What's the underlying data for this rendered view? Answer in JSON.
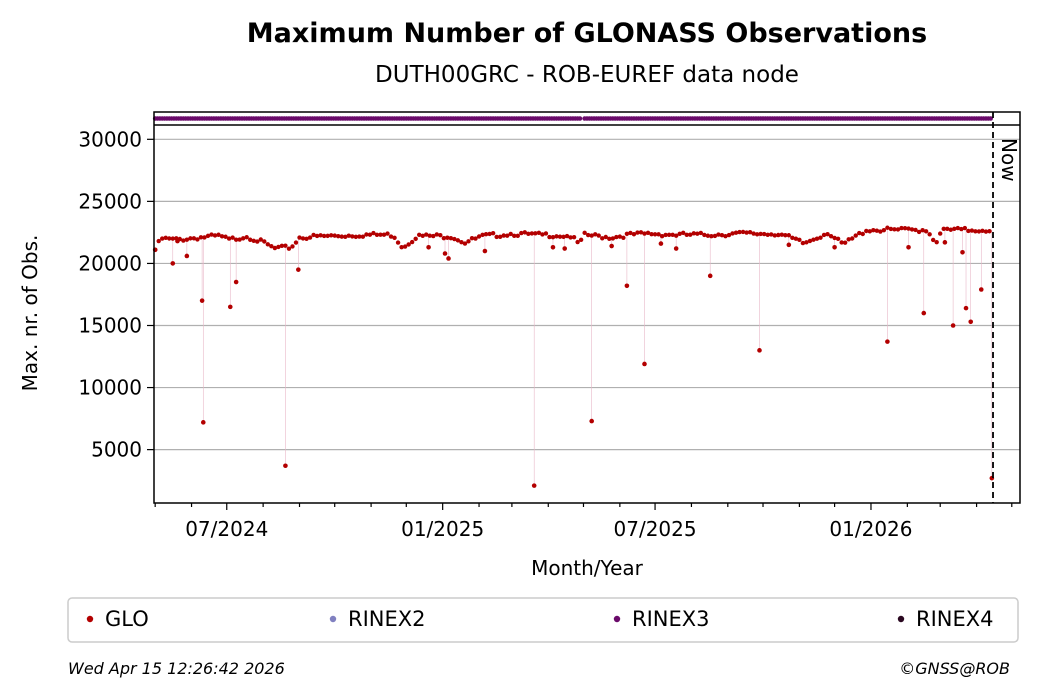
{
  "chart_data": {
    "type": "scatter",
    "title": "Maximum Number of GLONASS Observations",
    "subtitle": "DUTH00GRC - ROB-EUREF data node",
    "xlabel": "Month/Year",
    "ylabel": "Max. nr. of Obs.",
    "x_tick_labels": [
      "07/2024",
      "01/2025",
      "07/2025",
      "01/2026"
    ],
    "x_range": [
      "2024-04-30",
      "2026-05-08"
    ],
    "y_ticks": [
      5000,
      10000,
      15000,
      20000,
      25000,
      30000
    ],
    "y_range": [
      700,
      32200
    ],
    "grid": "horizontal",
    "now_marker": {
      "date": "2026-04-15",
      "label": "Now"
    },
    "rinex_bar": {
      "name": "RINEX3",
      "from": "2024-05-01",
      "to": "2026-04-14",
      "gap": "2025-04-30"
    },
    "legend": {
      "placement": "below",
      "entries": [
        {
          "label": "GLO",
          "color": "#b30000"
        },
        {
          "label": "RINEX2",
          "color": "#8080c0"
        },
        {
          "label": "RINEX3",
          "color": "#6a0a6a"
        },
        {
          "label": "RINEX4",
          "color": "#2a0820"
        }
      ]
    },
    "series": [
      {
        "name": "GLO",
        "color": "#b30000",
        "baseline": [
          [
            "2024-05-01",
            21100
          ],
          [
            "2024-05-06",
            22000
          ],
          [
            "2024-05-18",
            21900
          ],
          [
            "2024-06-08",
            22100
          ],
          [
            "2024-06-25",
            22200
          ],
          [
            "2024-07-03",
            21900
          ],
          [
            "2024-07-18",
            22200
          ],
          [
            "2024-08-03",
            21600
          ],
          [
            "2024-08-10",
            21200
          ],
          [
            "2024-08-25",
            21300
          ],
          [
            "2024-09-01",
            22100
          ],
          [
            "2024-09-25",
            22200
          ],
          [
            "2024-10-25",
            22300
          ],
          [
            "2024-11-20",
            22300
          ],
          [
            "2024-11-28",
            21300
          ],
          [
            "2024-12-10",
            22200
          ],
          [
            "2025-01-08",
            22200
          ],
          [
            "2025-01-20",
            21700
          ],
          [
            "2025-02-05",
            22200
          ],
          [
            "2025-03-01",
            22400
          ],
          [
            "2025-03-20",
            22300
          ],
          [
            "2025-04-03",
            22300
          ],
          [
            "2025-04-20",
            22200
          ],
          [
            "2025-04-28",
            21500
          ],
          [
            "2025-05-01",
            22300
          ],
          [
            "2025-05-25",
            22100
          ],
          [
            "2025-06-08",
            22300
          ],
          [
            "2025-06-28",
            22400
          ],
          [
            "2025-07-20",
            22300
          ],
          [
            "2025-08-10",
            22300
          ],
          [
            "2025-09-10",
            22400
          ],
          [
            "2025-10-15",
            22400
          ],
          [
            "2025-11-05",
            21600
          ],
          [
            "2025-11-25",
            22500
          ],
          [
            "2025-12-08",
            21500
          ],
          [
            "2025-12-28",
            22700
          ],
          [
            "2026-01-25",
            22700
          ],
          [
            "2026-02-18",
            22700
          ],
          [
            "2026-02-25",
            21700
          ],
          [
            "2026-03-04",
            22700
          ],
          [
            "2026-03-28",
            22700
          ],
          [
            "2026-04-13",
            22700
          ]
        ],
        "outliers": [
          [
            "2024-05-01",
            21100
          ],
          [
            "2024-05-16",
            20000
          ],
          [
            "2024-05-20",
            21800
          ],
          [
            "2024-05-28",
            20600
          ],
          [
            "2024-06-10",
            17000
          ],
          [
            "2024-06-11",
            7200
          ],
          [
            "2024-07-04",
            16500
          ],
          [
            "2024-07-09",
            18500
          ],
          [
            "2024-08-20",
            3700
          ],
          [
            "2024-08-31",
            19500
          ],
          [
            "2024-12-20",
            21300
          ],
          [
            "2025-01-03",
            20800
          ],
          [
            "2025-01-06",
            20400
          ],
          [
            "2025-02-06",
            21000
          ],
          [
            "2025-03-20",
            2100
          ],
          [
            "2025-04-05",
            21300
          ],
          [
            "2025-04-15",
            21200
          ],
          [
            "2025-05-08",
            7300
          ],
          [
            "2025-05-25",
            21400
          ],
          [
            "2025-06-07",
            18200
          ],
          [
            "2025-06-22",
            11900
          ],
          [
            "2025-07-06",
            21600
          ],
          [
            "2025-07-19",
            21200
          ],
          [
            "2025-08-17",
            19000
          ],
          [
            "2025-09-28",
            13000
          ],
          [
            "2025-10-23",
            21500
          ],
          [
            "2025-12-01",
            21300
          ],
          [
            "2026-01-15",
            13700
          ],
          [
            "2026-02-02",
            21300
          ],
          [
            "2026-02-15",
            16000
          ],
          [
            "2026-03-05",
            21700
          ],
          [
            "2026-03-12",
            15000
          ],
          [
            "2026-03-20",
            20900
          ],
          [
            "2026-03-23",
            16400
          ],
          [
            "2026-03-27",
            15300
          ],
          [
            "2026-04-05",
            17900
          ],
          [
            "2026-04-14",
            2700
          ]
        ]
      }
    ]
  },
  "footer": {
    "timestamp": "Wed Apr 15 12:26:42 2026",
    "credit": "©GNSS@ROB"
  }
}
